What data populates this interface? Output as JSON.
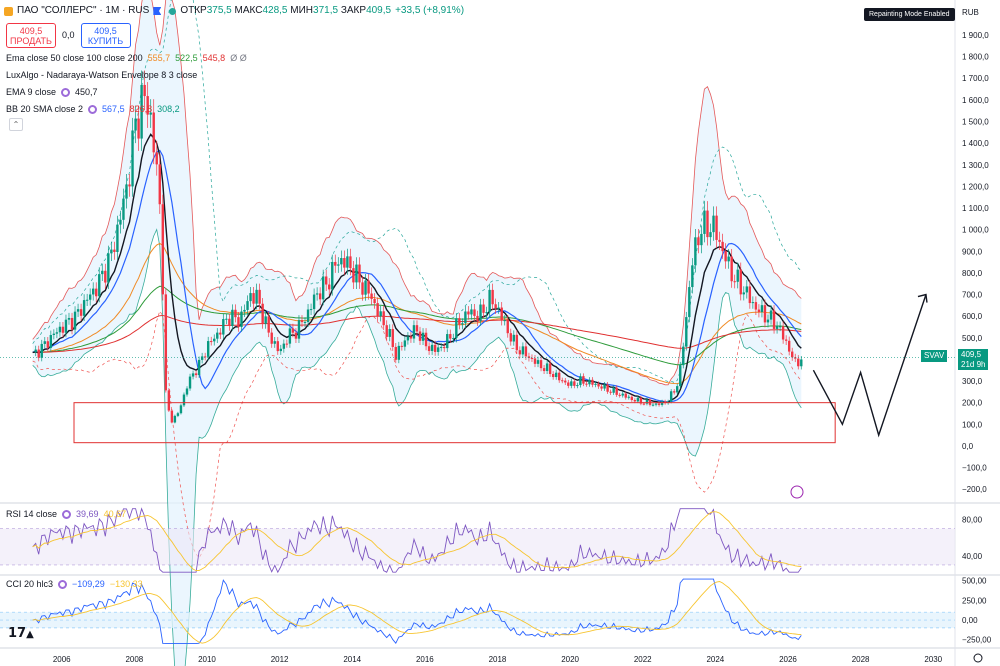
{
  "header": {
    "title": "ПАО \"СОЛЛЕРС\" · 1М · RUS",
    "ohlc": [
      {
        "label": "ОТКР",
        "value": "375,5"
      },
      {
        "label": "МАКС",
        "value": "428,5"
      },
      {
        "label": "МИН",
        "value": "371,5"
      },
      {
        "label": "ЗАКР",
        "value": "409,5"
      }
    ],
    "change": "+33,5 (+8,91%)",
    "badge": "Repainting Mode Enabled",
    "currency": "RUB"
  },
  "trade": {
    "sell_price": "409,5",
    "sell_label": "ПРОДАТЬ",
    "spread": "0,0",
    "buy_price": "409,5",
    "buy_label": "КУПИТЬ"
  },
  "indicators": [
    {
      "name": "Ema close 50 close 100 close 200",
      "values": [
        {
          "v": "555,7",
          "c": "#f08a24"
        },
        {
          "v": "522,5",
          "c": "#2e9b3a"
        },
        {
          "v": "545,8",
          "c": "#e03131"
        }
      ],
      "extra": "Ø Ø"
    },
    {
      "name": "LuxAlgo - Nadaraya-Watson Envelope 8 3 close",
      "values": []
    },
    {
      "name": "EMA 9 close",
      "gear": true,
      "values": [
        {
          "v": "450,7",
          "c": "#131722"
        }
      ]
    },
    {
      "name": "BB 20 SMA close 2",
      "gear": true,
      "values": [
        {
          "v": "567,5",
          "c": "#2962ff"
        },
        {
          "v": "826,8",
          "c": "#e03131"
        },
        {
          "v": "308,2",
          "c": "#089981"
        }
      ]
    }
  ],
  "rsi": {
    "name": "RSI 14 close",
    "value1": "39,69",
    "value2": "40,67",
    "c1": "#7e57c2",
    "c2": "#f7c531"
  },
  "cci": {
    "name": "CCI 20 hlc3",
    "value1": "−109,29",
    "value2": "−130,33",
    "c1": "#2962ff",
    "c2": "#f7c531"
  },
  "price_tag": {
    "symbol": "SVAV",
    "price": "409,5",
    "time": "21d 9h"
  },
  "colors": {
    "up": "#089981",
    "down": "#f23645",
    "ema9": "#131722",
    "bb_basis": "#2962ff",
    "ema50": "#f08a24",
    "ema100": "#2e9b3a",
    "ema200": "#e03131",
    "bb_upper": "#e03131",
    "bb_lower": "#089981",
    "env_fill": "#e3f2fd",
    "box": "#e03131",
    "projection": "#131722"
  },
  "chart_data": {
    "type": "candlestick",
    "x_ticks": [
      "2006",
      "2008",
      "2010",
      "2012",
      "2014",
      "2016",
      "2018",
      "2020",
      "2022",
      "2024",
      "2026",
      "2028",
      "2030"
    ],
    "xlim": [
      2004.3,
      2030.6
    ],
    "y_ticks": [
      -200,
      -100,
      0,
      100,
      200,
      300,
      400,
      500,
      600,
      700,
      800,
      900,
      1000,
      1100,
      1200,
      1300,
      1400,
      1500,
      1600,
      1700,
      1800,
      1900
    ],
    "y_tick_labels": [
      "−200,0",
      "−100,0",
      "0,0",
      "100,0",
      "200,0",
      "300,0",
      "400,0",
      "500,0",
      "600,0",
      "700,0",
      "800,0",
      "900,0",
      "1 000,0",
      "1 100,0",
      "1 200,0",
      "1 300,0",
      "1 400,0",
      "1 500,0",
      "1 600,0",
      "1 700,0",
      "1 800,0",
      "1 900,0"
    ],
    "ylim": [
      -250,
      1960
    ],
    "close_series": [
      [
        2005.2,
        420
      ],
      [
        2005.5,
        460
      ],
      [
        2005.8,
        520
      ],
      [
        2006.1,
        560
      ],
      [
        2006.4,
        600
      ],
      [
        2006.7,
        680
      ],
      [
        2006.9,
        720
      ],
      [
        2007.1,
        780
      ],
      [
        2007.4,
        900
      ],
      [
        2007.6,
        1050
      ],
      [
        2007.8,
        1200
      ],
      [
        2008.0,
        1450
      ],
      [
        2008.2,
        1600
      ],
      [
        2008.4,
        1580
      ],
      [
        2008.6,
        1300
      ],
      [
        2008.75,
        1000
      ],
      [
        2008.85,
        260
      ],
      [
        2009.0,
        110
      ],
      [
        2009.2,
        150
      ],
      [
        2009.5,
        300
      ],
      [
        2009.8,
        380
      ],
      [
        2010.0,
        460
      ],
      [
        2010.3,
        520
      ],
      [
        2010.6,
        600
      ],
      [
        2010.9,
        580
      ],
      [
        2011.2,
        700
      ],
      [
        2011.4,
        680
      ],
      [
        2011.7,
        520
      ],
      [
        2012.0,
        430
      ],
      [
        2012.2,
        500
      ],
      [
        2012.5,
        540
      ],
      [
        2012.8,
        620
      ],
      [
        2013.0,
        700
      ],
      [
        2013.3,
        750
      ],
      [
        2013.6,
        860
      ],
      [
        2013.9,
        840
      ],
      [
        2014.2,
        760
      ],
      [
        2014.5,
        700
      ],
      [
        2014.7,
        620
      ],
      [
        2015.0,
        520
      ],
      [
        2015.2,
        420
      ],
      [
        2015.5,
        500
      ],
      [
        2015.8,
        540
      ],
      [
        2016.0,
        470
      ],
      [
        2016.3,
        440
      ],
      [
        2016.6,
        480
      ],
      [
        2016.9,
        560
      ],
      [
        2017.2,
        620
      ],
      [
        2017.5,
        600
      ],
      [
        2017.8,
        680
      ],
      [
        2018.0,
        640
      ],
      [
        2018.2,
        560
      ],
      [
        2018.5,
        460
      ],
      [
        2018.8,
        420
      ],
      [
        2019.1,
        380
      ],
      [
        2019.4,
        350
      ],
      [
        2019.7,
        310
      ],
      [
        2020.0,
        280
      ],
      [
        2020.3,
        300
      ],
      [
        2020.6,
        290
      ],
      [
        2020.9,
        270
      ],
      [
        2021.2,
        250
      ],
      [
        2021.5,
        230
      ],
      [
        2021.8,
        210
      ],
      [
        2022.1,
        200
      ],
      [
        2022.4,
        190
      ],
      [
        2022.7,
        210
      ],
      [
        2023.0,
        300
      ],
      [
        2023.2,
        600
      ],
      [
        2023.4,
        900
      ],
      [
        2023.6,
        1000
      ],
      [
        2023.8,
        1020
      ],
      [
        2024.0,
        1000
      ],
      [
        2024.2,
        900
      ],
      [
        2024.5,
        780
      ],
      [
        2024.8,
        720
      ],
      [
        2025.1,
        640
      ],
      [
        2025.4,
        600
      ],
      [
        2025.7,
        560
      ],
      [
        2026.0,
        460
      ],
      [
        2026.2,
        380
      ],
      [
        2026.4,
        409.5
      ]
    ],
    "box": {
      "x": [
        2004.3,
        2027.3
      ],
      "y": [
        15,
        200
      ]
    },
    "projection": [
      [
        2026.7,
        350
      ],
      [
        2027.5,
        100
      ],
      [
        2028.0,
        340
      ],
      [
        2028.5,
        50
      ],
      [
        2029.8,
        700
      ]
    ],
    "rsi": {
      "ylim": [
        20,
        95
      ],
      "ticks": [
        80,
        40
      ],
      "tick_labels": [
        "80,00",
        "40,00"
      ],
      "band": [
        30,
        70
      ]
    },
    "cci": {
      "ylim": [
        -330,
        560
      ],
      "ticks": [
        500,
        250,
        0,
        -250
      ],
      "tick_labels": [
        "500,00",
        "250,00",
        "0,00",
        "−250,00"
      ],
      "band": [
        -100,
        100
      ]
    }
  }
}
